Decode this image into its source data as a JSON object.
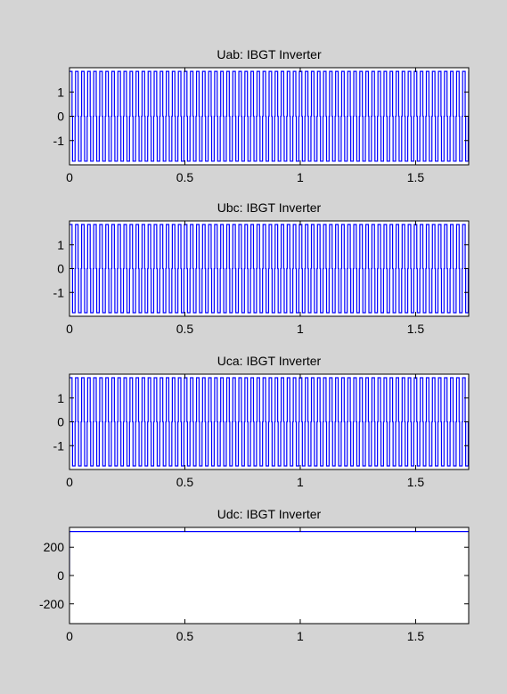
{
  "figure": {
    "background": "#d4d4d4",
    "line_color": "#0000ff"
  },
  "chart_data": [
    {
      "type": "line",
      "title": "Uab: IBGT Inverter",
      "xlabel": "",
      "ylabel": "",
      "xlim": [
        0,
        1.73
      ],
      "ylim": [
        -2,
        2
      ],
      "xticks": [
        "0",
        "0.5",
        "1",
        "1.5"
      ],
      "yticks": [
        "-1",
        "0",
        "1"
      ],
      "grid": false,
      "series": [
        {
          "waveform": "square",
          "amplitude": 1.85,
          "periods": 66,
          "color": "#0000ff"
        }
      ]
    },
    {
      "type": "line",
      "title": "Ubc: IBGT Inverter",
      "xlabel": "",
      "ylabel": "",
      "xlim": [
        0,
        1.73
      ],
      "ylim": [
        -2,
        2
      ],
      "xticks": [
        "0",
        "0.5",
        "1",
        "1.5"
      ],
      "yticks": [
        "-1",
        "0",
        "1"
      ],
      "grid": false,
      "series": [
        {
          "waveform": "square",
          "amplitude": 1.85,
          "periods": 66,
          "color": "#0000ff"
        }
      ]
    },
    {
      "type": "line",
      "title": "Uca: IBGT Inverter",
      "xlabel": "",
      "ylabel": "",
      "xlim": [
        0,
        1.73
      ],
      "ylim": [
        -2,
        2
      ],
      "xticks": [
        "0",
        "0.5",
        "1",
        "1.5"
      ],
      "yticks": [
        "-1",
        "0",
        "1"
      ],
      "grid": false,
      "series": [
        {
          "waveform": "square",
          "amplitude": 1.85,
          "periods": 66,
          "color": "#0000ff"
        }
      ]
    },
    {
      "type": "line",
      "title": "Udc: IBGT Inverter",
      "xlabel": "",
      "ylabel": "",
      "xlim": [
        0,
        1.73
      ],
      "ylim": [
        -340,
        340
      ],
      "xticks": [
        "0",
        "0.5",
        "1",
        "1.5"
      ],
      "yticks": [
        "-200",
        "0",
        "200"
      ],
      "grid": false,
      "series": [
        {
          "waveform": "constant",
          "value": 311,
          "color": "#0000ff"
        }
      ]
    }
  ]
}
